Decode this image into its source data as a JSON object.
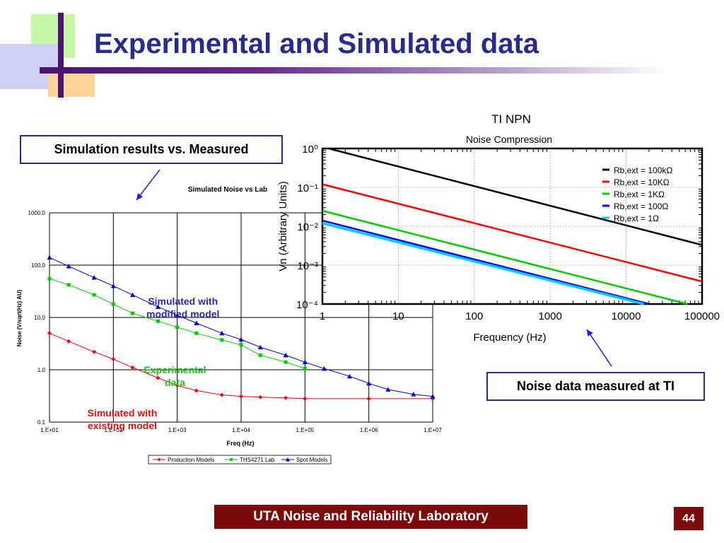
{
  "slide": {
    "title": "Experimental and Simulated data",
    "callout_left": "Simulation results vs. Measured",
    "callout_right": "Noise data measured at TI",
    "footer": "UTA Noise and Reliability Laboratory",
    "page_number": "44",
    "colors": {
      "title": "#2a2a8a",
      "footer_bg": "#7c0a0a",
      "bar": "#4b1470"
    }
  },
  "annotations": {
    "simulated_modified": [
      "Simulated with",
      "modified model"
    ],
    "experimental": [
      "Experimental",
      "data"
    ],
    "simulated_existing": [
      "Simulated with",
      "existing model"
    ]
  },
  "chart_data": [
    {
      "type": "line",
      "title": "Simulated Noise vs Lab",
      "xlabel": "Freq (Hz)",
      "ylabel": "Noise (V/sqrt(Hz) AU)",
      "xscale": "log",
      "yscale": "log",
      "xlim": [
        10,
        10000000
      ],
      "ylim": [
        0.1,
        1000
      ],
      "x_ticks": [
        "1.E+01",
        "1.E+02",
        "1.E+03",
        "1.E+04",
        "1.E+05",
        "1.E+06",
        "1.E+07"
      ],
      "y_ticks": [
        "0.1",
        "1.0",
        "10.0",
        "100.0",
        "1000.0"
      ],
      "grid": true,
      "legend": "bottom",
      "series": [
        {
          "name": "Production Models",
          "color": "#ff0000",
          "marker": "diamond",
          "x": [
            10,
            20,
            50,
            100,
            200,
            500,
            1000,
            2000,
            5000,
            10000,
            20000,
            50000,
            100000,
            1000000,
            10000000
          ],
          "y": [
            5,
            3.5,
            2.2,
            1.6,
            1.1,
            0.7,
            0.5,
            0.4,
            0.33,
            0.31,
            0.3,
            0.29,
            0.28,
            0.28,
            0.28
          ]
        },
        {
          "name": "THS4271 Lab",
          "color": "#00cc00",
          "marker": "square",
          "x": [
            10,
            20,
            50,
            100,
            200,
            500,
            1000,
            2000,
            5000,
            10000,
            20000,
            50000,
            100000
          ],
          "y": [
            55,
            42,
            27,
            18,
            12,
            8.5,
            6.5,
            5,
            3.7,
            3,
            1.9,
            1.4,
            1.05
          ]
        },
        {
          "name": "Spot Models",
          "color": "#0000cc",
          "marker": "triangle",
          "x": [
            10,
            20,
            50,
            100,
            200,
            500,
            1000,
            2000,
            5000,
            10000,
            20000,
            50000,
            100000,
            200000,
            500000,
            1000000,
            2000000,
            5000000,
            10000000
          ],
          "y": [
            140,
            95,
            58,
            40,
            27,
            16,
            11,
            7.8,
            5,
            3.8,
            2.7,
            1.9,
            1.4,
            1.05,
            0.75,
            0.55,
            0.42,
            0.34,
            0.31
          ]
        }
      ]
    },
    {
      "type": "line",
      "title": "TI NPN",
      "subtitle": "Noise Compression",
      "xlabel": "Frequency (Hz)",
      "ylabel": "Vn (Arbitrary Units)",
      "xscale": "log",
      "yscale": "log",
      "xlim": [
        1,
        100000
      ],
      "ylim": [
        0.0001,
        1
      ],
      "x_ticks": [
        "1",
        "10",
        "100",
        "1000",
        "10000",
        "100000"
      ],
      "y_ticks": [
        "10⁻⁴",
        "10⁻³",
        "10⁻²",
        "10⁻¹",
        "10⁰"
      ],
      "grid": true,
      "legend": "top-right",
      "series": [
        {
          "name": "Rb,ext = 100kΩ",
          "color": "#000000",
          "x": [
            1,
            100000
          ],
          "y": [
            1.1,
            0.0033
          ]
        },
        {
          "name": "Rb,ext = 10KΩ",
          "color": "#ff0000",
          "x": [
            1,
            100000
          ],
          "y": [
            0.12,
            0.00038
          ]
        },
        {
          "name": "Rb,ext = 1KΩ",
          "color": "#00cc00",
          "x": [
            1,
            100000
          ],
          "y": [
            0.025,
            8e-05
          ]
        },
        {
          "name": "Rb,ext = 100Ω",
          "color": "#0000ff",
          "x": [
            1,
            100000
          ],
          "y": [
            0.014,
            4.5e-05
          ]
        },
        {
          "name": "Rb,ext = 1Ω",
          "color": "#00ccff",
          "x": [
            1,
            100000
          ],
          "y": [
            0.012,
            4.2e-05
          ]
        }
      ]
    }
  ]
}
